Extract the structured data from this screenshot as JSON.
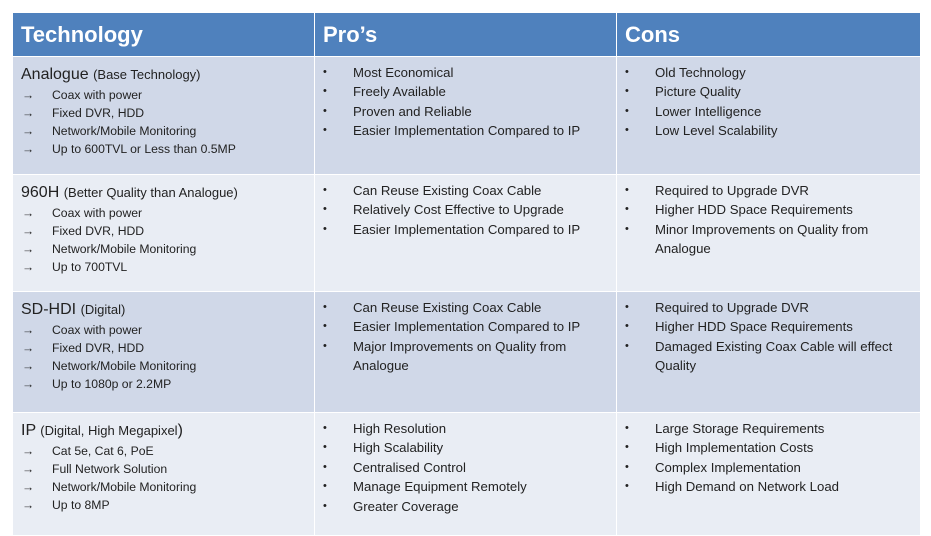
{
  "header": {
    "col1": "Technology",
    "col2": "Pro’s",
    "col3": "Cons"
  },
  "rows": [
    {
      "name": "Analogue",
      "subtitle": "(Base Technology)",
      "features": [
        "Coax with power",
        "Fixed DVR, HDD",
        "Network/Mobile Monitoring",
        "Up to 600TVL  or Less than 0.5MP"
      ],
      "pros": [
        "Most Economical",
        "Freely Available",
        "Proven and Reliable",
        "Easier Implementation Compared to IP"
      ],
      "cons": [
        "Old Technology",
        "Picture Quality",
        "Lower Intelligence",
        "Low Level Scalability"
      ]
    },
    {
      "name": "960H",
      "subtitle": "(Better Quality than Analogue)",
      "features": [
        "Coax with power",
        "Fixed DVR, HDD",
        "Network/Mobile Monitoring",
        "Up to 700TVL"
      ],
      "pros": [
        "Can Reuse Existing Coax Cable",
        "Relatively Cost Effective to Upgrade",
        "Easier Implementation Compared to IP"
      ],
      "cons": [
        "Required to Upgrade DVR",
        "Higher HDD Space Requirements",
        "Minor Improvements on Quality from Analogue"
      ]
    },
    {
      "name": "SD-HDI",
      "subtitle": "(Digital)",
      "features": [
        "Coax with power",
        "Fixed DVR, HDD",
        "Network/Mobile Monitoring",
        "Up to 1080p  or 2.2MP"
      ],
      "pros": [
        "Can Reuse Existing Coax Cable",
        "Easier Implementation Compared to IP",
        "Major Improvements on Quality from Analogue"
      ],
      "cons": [
        "Required to Upgrade DVR",
        "Higher HDD Space Requirements",
        "Damaged Existing Coax Cable will effect Quality"
      ]
    },
    {
      "name": "IP",
      "subtitle": "(Digital, High Megapixel",
      "subtitle_close": ")",
      "features": [
        "Cat 5e, Cat 6, PoE",
        "Full Network Solution",
        "Network/Mobile Monitoring",
        "Up to 8MP"
      ],
      "pros": [
        "High Resolution",
        "High Scalability",
        "Centralised Control",
        "Manage Equipment Remotely",
        "Greater Coverage"
      ],
      "cons": [
        "Large Storage Requirements",
        "High Implementation Costs",
        "Complex Implementation",
        "High Demand on Network Load"
      ]
    }
  ],
  "glyphs": {
    "arrow": "→",
    "bullet": "•"
  },
  "colors": {
    "header": "#4f81bd",
    "row_dark": "#d0d8e8",
    "row_light": "#e9edf4"
  }
}
